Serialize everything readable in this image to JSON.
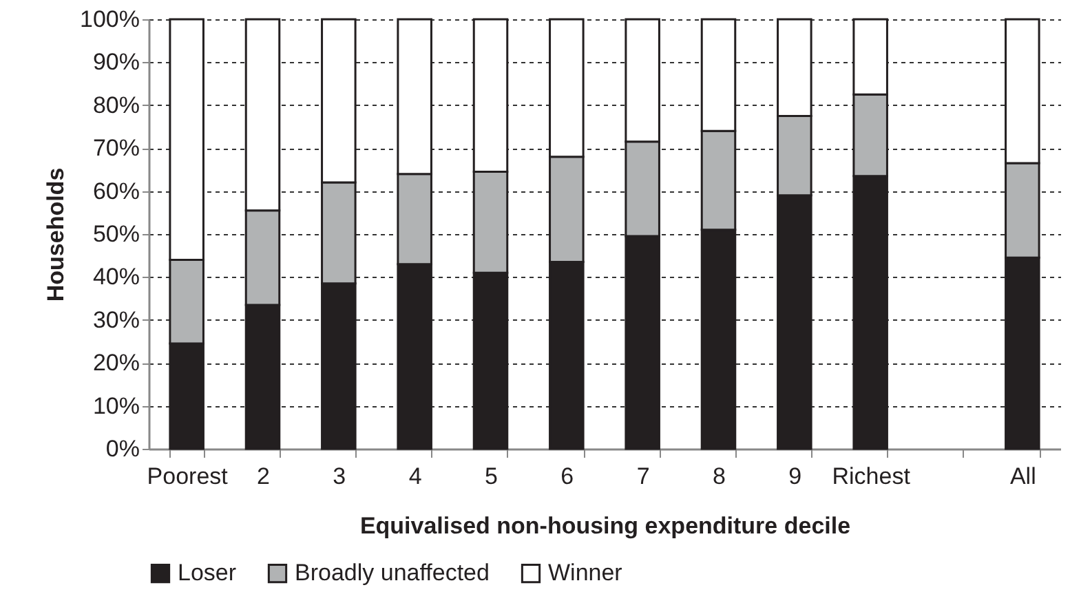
{
  "chart_data": {
    "type": "bar",
    "stacked": true,
    "xlabel": "Equivalised non-housing expenditure decile",
    "ylabel": "Households",
    "categories": [
      "Poorest",
      "2",
      "3",
      "4",
      "5",
      "6",
      "7",
      "8",
      "9",
      "Richest",
      null,
      "All"
    ],
    "series": [
      {
        "name": "Loser",
        "color": "#231f20",
        "values": [
          24.5,
          33.5,
          38.5,
          43,
          41,
          43.5,
          49.5,
          51,
          59,
          63.5,
          null,
          44.5
        ]
      },
      {
        "name": "Broadly unaffected",
        "color": "#b1b3b4",
        "values": [
          19.5,
          22,
          23.5,
          21,
          23.5,
          24.5,
          22,
          23,
          18.5,
          19,
          null,
          22
        ]
      },
      {
        "name": "Winner",
        "color": "#ffffff",
        "values": [
          56,
          44.5,
          38,
          36,
          35.5,
          32,
          28.5,
          26,
          22.5,
          17.5,
          null,
          33.5
        ]
      }
    ],
    "ylim": [
      0,
      100
    ],
    "yticks": [
      {
        "value": 0,
        "label": "0%"
      },
      {
        "value": 10,
        "label": "10%"
      },
      {
        "value": 20,
        "label": "20%"
      },
      {
        "value": 30,
        "label": "30%"
      },
      {
        "value": 40,
        "label": "40%"
      },
      {
        "value": 50,
        "label": "50%"
      },
      {
        "value": 60,
        "label": "60%"
      },
      {
        "value": 70,
        "label": "70%"
      },
      {
        "value": 80,
        "label": "80%"
      },
      {
        "value": 90,
        "label": "90%"
      },
      {
        "value": 100,
        "label": "100%"
      }
    ],
    "grid": "y",
    "legend": "bottom"
  }
}
